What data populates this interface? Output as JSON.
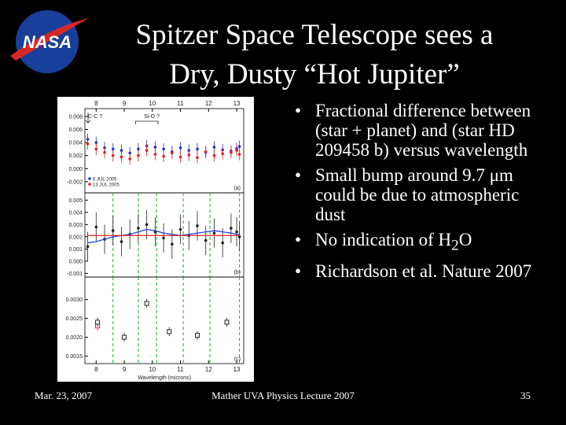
{
  "header": {
    "title": [
      "Spitzer Space Telescope sees a",
      "Dry, Dusty “Hot Jupiter”"
    ],
    "logo": "NASA"
  },
  "bullets": [
    "Fractional difference between (star + planet) and (star HD 209458 b) versus wavelength",
    "Small bump around 9.7 μm could be due to atmospheric dust",
    {
      "text": "No indication of H",
      "sub": "2",
      "after": "O"
    },
    "Richardson et al. Nature 2007"
  ],
  "footer": {
    "date": "Mar. 23,  2007",
    "center": "Mather UVA Physics Lecture 2007",
    "page": "35"
  },
  "chart_data": [
    {
      "type": "scatter",
      "panel_label": "(a)",
      "xlim": [
        7.6,
        13.25
      ],
      "xticks": [
        8,
        9,
        10,
        11,
        12,
        13
      ],
      "ylim": [
        -0.0037,
        0.0092
      ],
      "yticks": [
        0.008,
        0.006,
        0.004,
        0.002,
        {
          "value": 0,
          "label": "0.000"
        },
        -0.002
      ],
      "annotations": [
        "C-C ?",
        "Si-O ?"
      ],
      "x": [
        7.7,
        8.0,
        8.3,
        8.6,
        8.9,
        9.2,
        9.5,
        9.8,
        10.1,
        10.4,
        10.7,
        11.0,
        11.3,
        11.6,
        11.9,
        12.2,
        12.5,
        12.8,
        13.0,
        13.1
      ],
      "series": [
        {
          "name": "6 JUL 2005",
          "color": "#2233cc",
          "marker": "circle",
          "error": 0.0009,
          "values": [
            0.0045,
            0.004,
            0.0032,
            0.003,
            0.0028,
            0.0024,
            0.003,
            0.0035,
            0.0033,
            0.003,
            0.0026,
            0.0032,
            0.0028,
            0.003,
            0.0025,
            0.0033,
            0.0029,
            0.0027,
            0.0031,
            0.0034
          ]
        },
        {
          "name": "13 JUL 2005",
          "color": "#dd2222",
          "marker": "circle",
          "error": 0.0009,
          "values": [
            0.0038,
            0.003,
            0.0025,
            0.002,
            0.0018,
            0.0015,
            0.002,
            0.0028,
            0.0022,
            0.0019,
            0.0024,
            0.0018,
            0.0021,
            0.0017,
            0.0026,
            0.002,
            0.0023,
            0.0025,
            0.0028,
            0.0022
          ]
        }
      ]
    },
    {
      "type": "scatter",
      "panel_label": "(b)",
      "xlim": [
        7.6,
        13.25
      ],
      "ylim": [
        -0.0013,
        0.0056
      ],
      "yticks": [
        0.005,
        0.004,
        0.003,
        0.002,
        0.001,
        {
          "value": 0,
          "label": "0.000"
        },
        -0.001
      ],
      "vlines": [
        8.6,
        9.5,
        10.15,
        11.1,
        12.05,
        13.1
      ],
      "x": [
        7.7,
        8.0,
        8.3,
        8.6,
        8.9,
        9.2,
        9.5,
        9.8,
        10.1,
        10.4,
        10.7,
        11.0,
        11.3,
        11.6,
        11.9,
        12.2,
        12.5,
        12.8,
        13.0,
        13.1
      ],
      "series": [
        {
          "color": "#222222",
          "marker": "circle",
          "error": 0.0012,
          "values": [
            0.0012,
            0.0028,
            0.0018,
            0.0025,
            0.0016,
            0.0022,
            0.0027,
            0.003,
            0.0024,
            0.0019,
            0.0014,
            0.0026,
            0.0021,
            0.0029,
            0.0017,
            0.0023,
            0.0015,
            0.0027,
            0.0024,
            0.002
          ]
        },
        {
          "color": "#2244dd",
          "marker": "line",
          "values": [
            0.0015,
            0.0016,
            0.0018,
            0.002,
            0.0021,
            0.0022,
            0.0024,
            0.0026,
            0.0025,
            0.0023,
            0.0022,
            0.0021,
            0.0022,
            0.0023,
            0.0024,
            0.0025,
            0.0024,
            0.0023,
            0.0022,
            0.0022
          ]
        },
        {
          "color": "#dd2222",
          "marker": "line",
          "values": [
            0.0021,
            0.0021,
            0.0021,
            0.0021,
            0.0021,
            0.0021,
            0.0021,
            0.0021,
            0.0021,
            0.0021,
            0.0021,
            0.0021,
            0.0021,
            0.0021,
            0.0021,
            0.0021,
            0.0021,
            0.0021,
            0.0021,
            0.0021
          ]
        }
      ]
    },
    {
      "type": "scatter",
      "panel_label": "(c)",
      "xlim": [
        7.6,
        13.25
      ],
      "xticks": [
        8,
        9,
        10,
        11,
        12,
        13
      ],
      "xlabel": "Wavelength (microns)",
      "ylim": [
        0.0013,
        0.0036
      ],
      "yticks": [
        {
          "value": 0.003,
          "label": "0.0030"
        },
        {
          "value": 0.0025,
          "label": "0.0025"
        },
        {
          "value": 0.002,
          "label": "0.0020"
        },
        {
          "value": 0.0015,
          "label": "0.0015"
        }
      ],
      "vlines": [
        8.6,
        9.5,
        10.15,
        11.1,
        12.05,
        13.1
      ],
      "series": [
        {
          "color": "#dd2222",
          "marker": "square",
          "error": 0.00013,
          "x": [
            8.05
          ],
          "values": [
            0.0023
          ]
        },
        {
          "color": "#222222",
          "marker": "square",
          "error": 0.00012,
          "x": [
            8.05,
            9.0,
            9.8,
            10.6,
            11.6,
            12.65
          ],
          "values": [
            0.0024,
            0.002,
            0.0029,
            0.00215,
            0.00205,
            0.0024
          ]
        }
      ]
    }
  ]
}
